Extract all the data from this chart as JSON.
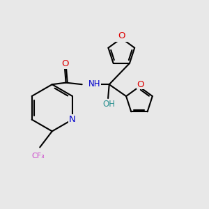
{
  "bg_color": "#e8e8e8",
  "bond_color": "#000000",
  "bond_width": 1.5,
  "atom_colors": {
    "O": "#dd0000",
    "N_py": "#0000cc",
    "NH": "#0000cc",
    "F": "#cc44cc",
    "OH": "#2a9090"
  },
  "font_size": 8.5
}
